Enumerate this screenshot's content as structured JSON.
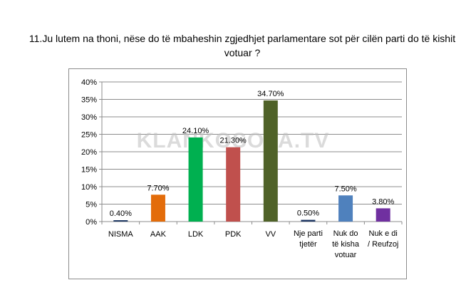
{
  "question": {
    "line1": "11.Ju lutem na thoni, nëse do të mbaheshin zgjedhjet parlamentare sot për cilën parti do të kishit",
    "line2": "votuar ?"
  },
  "watermark": "KLANKOSOVA.TV",
  "chart_data": {
    "type": "bar",
    "title": "",
    "xlabel": "",
    "ylabel": "",
    "ylim": [
      0,
      40
    ],
    "yticks": [
      "0%",
      "5%",
      "10%",
      "15%",
      "20%",
      "25%",
      "30%",
      "35%",
      "40%"
    ],
    "grid": true,
    "legend": "none",
    "categories": [
      [
        "NISMA"
      ],
      [
        "AAK"
      ],
      [
        "LDK"
      ],
      [
        "PDK"
      ],
      [
        "VV"
      ],
      [
        "Nje parti",
        "tjetër"
      ],
      [
        "Nuk do",
        "të kisha",
        "votuar"
      ],
      [
        "Nuk e di",
        "/ Reufzoj"
      ]
    ],
    "values": [
      0.4,
      7.7,
      24.1,
      21.3,
      34.7,
      0.5,
      7.5,
      3.8
    ],
    "labels": [
      "0.40%",
      "7.70%",
      "24.10%",
      "21.30%",
      "34.70%",
      "0.50%",
      "7.50%",
      "3.80%"
    ],
    "colors": [
      "#1f3864",
      "#e36c0a",
      "#00b050",
      "#c0504d",
      "#4f6228",
      "#1f3864",
      "#4f81bd",
      "#7030a0"
    ]
  }
}
